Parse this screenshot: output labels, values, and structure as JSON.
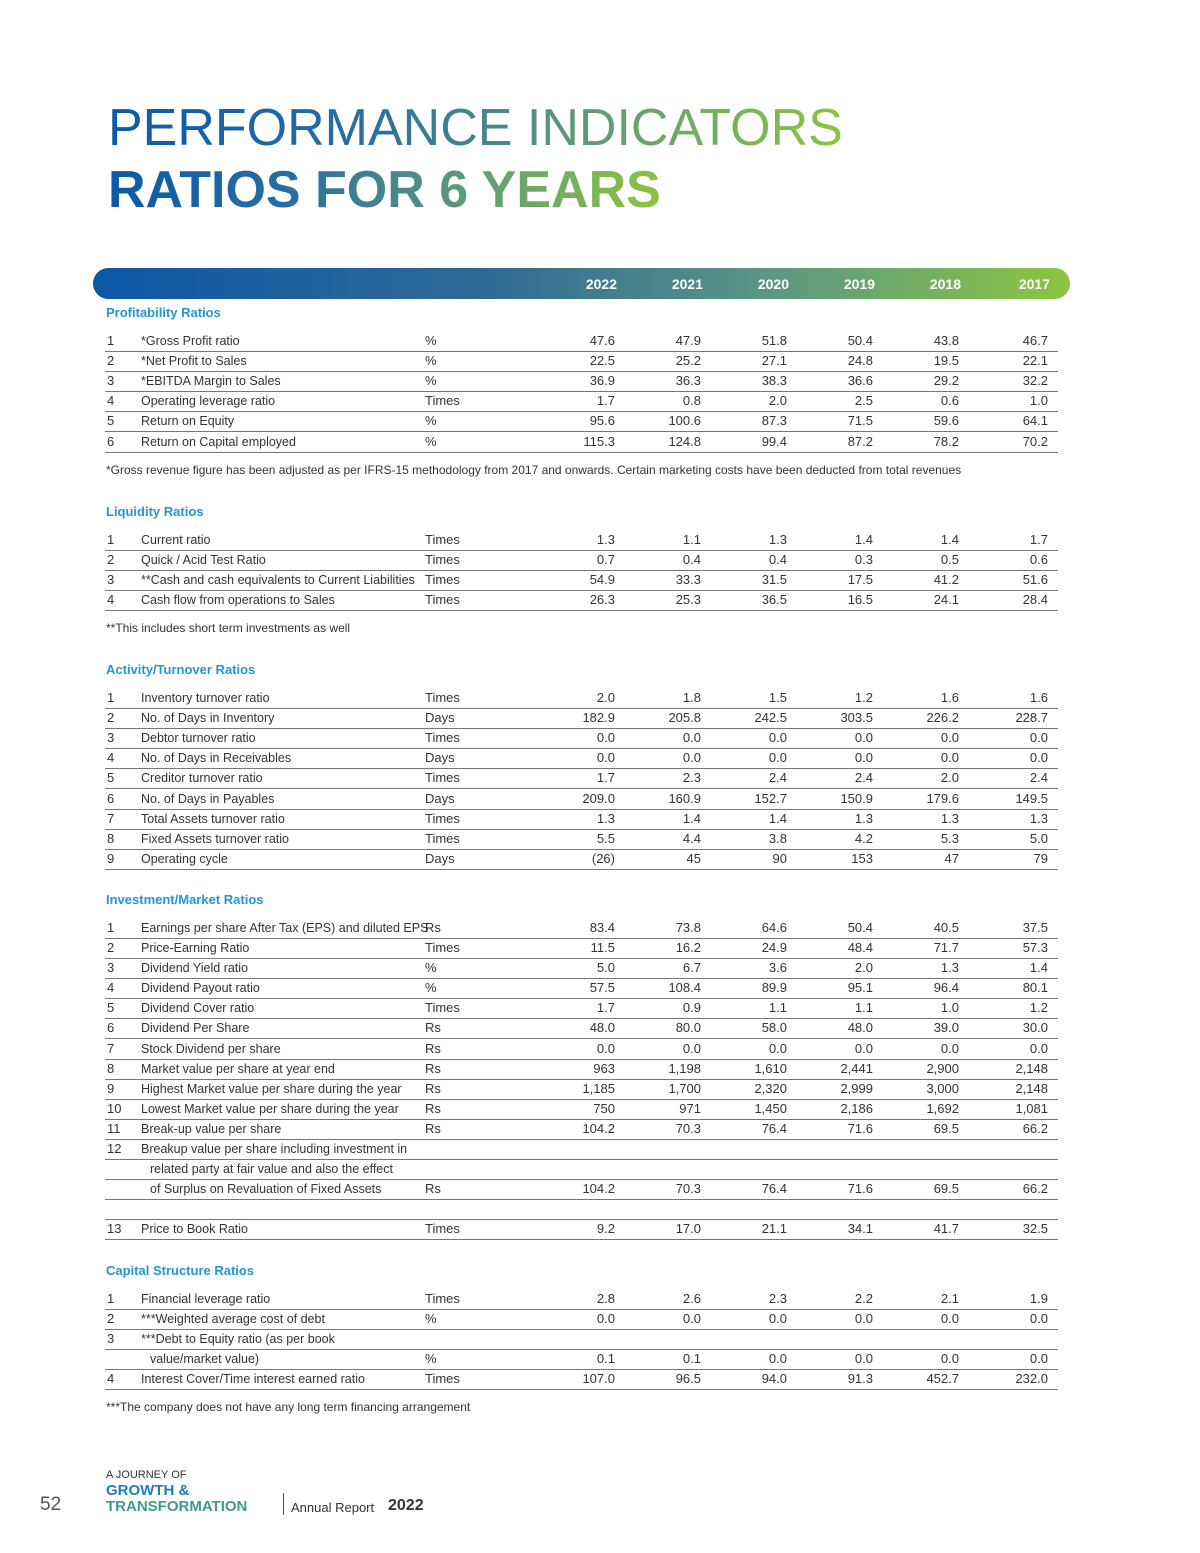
{
  "header": {
    "title_line1": "PERFORMANCE INDICATORS",
    "title_line2": "RATIOS FOR 6 YEARS"
  },
  "table": {
    "years": [
      "2022",
      "2021",
      "2020",
      "2019",
      "2018",
      "2017"
    ],
    "sections": [
      {
        "title": "Profitability Ratios",
        "rows": [
          {
            "no": "1",
            "label": "*Gross Profit ratio",
            "unit": "%",
            "values": [
              "47.6",
              "47.9",
              "51.8",
              "50.4",
              "43.8",
              "46.7"
            ]
          },
          {
            "no": "2",
            "label": "*Net Profit to Sales",
            "unit": "%",
            "values": [
              "22.5",
              "25.2",
              "27.1",
              "24.8",
              "19.5",
              "22.1"
            ]
          },
          {
            "no": "3",
            "label": "*EBITDA Margin to Sales",
            "unit": "%",
            "values": [
              "36.9",
              "36.3",
              "38.3",
              "36.6",
              "29.2",
              "32.2"
            ]
          },
          {
            "no": "4",
            "label": "Operating leverage ratio",
            "unit": "Times",
            "values": [
              "1.7",
              "0.8",
              "2.0",
              "2.5",
              "0.6",
              "1.0"
            ]
          },
          {
            "no": "5",
            "label": "Return on Equity",
            "unit": "%",
            "values": [
              "95.6",
              "100.6",
              "87.3",
              "71.5",
              "59.6",
              "64.1"
            ]
          },
          {
            "no": "6",
            "label": "Return on Capital employed",
            "unit": "%",
            "values": [
              "115.3",
              "124.8",
              "99.4",
              "87.2",
              "78.2",
              "70.2"
            ]
          }
        ],
        "note": "*Gross revenue figure has been adjusted as per IFRS-15 methodology from 2017 and onwards. Certain marketing costs have been deducted from total revenues"
      },
      {
        "title": "Liquidity Ratios",
        "rows": [
          {
            "no": "1",
            "label": "Current ratio",
            "unit": "Times",
            "values": [
              "1.3",
              "1.1",
              "1.3",
              "1.4",
              "1.4",
              "1.7"
            ]
          },
          {
            "no": "2",
            "label": "Quick / Acid Test Ratio",
            "unit": "Times",
            "values": [
              "0.7",
              "0.4",
              "0.4",
              "0.3",
              "0.5",
              "0.6"
            ]
          },
          {
            "no": "3",
            "label": "**Cash and cash equivalents to Current Liabilities",
            "unit": "Times",
            "values": [
              "54.9",
              "33.3",
              "31.5",
              "17.5",
              "41.2",
              "51.6"
            ]
          },
          {
            "no": "4",
            "label": "Cash flow from operations to Sales",
            "unit": "Times",
            "values": [
              "26.3",
              "25.3",
              "36.5",
              "16.5",
              "24.1",
              "28.4"
            ]
          }
        ],
        "note": "**This includes short term investments as well"
      },
      {
        "title": "Activity/Turnover Ratios",
        "rows": [
          {
            "no": "1",
            "label": "Inventory turnover ratio",
            "unit": "Times",
            "values": [
              "2.0",
              "1.8",
              "1.5",
              "1.2",
              "1.6",
              "1.6"
            ]
          },
          {
            "no": "2",
            "label": "No. of Days in Inventory",
            "unit": "Days",
            "values": [
              "182.9",
              "205.8",
              "242.5",
              "303.5",
              "226.2",
              "228.7"
            ]
          },
          {
            "no": "3",
            "label": "Debtor turnover ratio",
            "unit": "Times",
            "values": [
              "0.0",
              "0.0",
              "0.0",
              "0.0",
              "0.0",
              "0.0"
            ]
          },
          {
            "no": "4",
            "label": "No. of Days in Receivables",
            "unit": "Days",
            "values": [
              "0.0",
              "0.0",
              "0.0",
              "0.0",
              "0.0",
              "0.0"
            ]
          },
          {
            "no": "5",
            "label": "Creditor turnover ratio",
            "unit": "Times",
            "values": [
              "1.7",
              "2.3",
              "2.4",
              "2.4",
              "2.0",
              "2.4"
            ]
          },
          {
            "no": "6",
            "label": "No. of Days in Payables",
            "unit": "Days",
            "values": [
              "209.0",
              "160.9",
              "152.7",
              "150.9",
              "179.6",
              "149.5"
            ]
          },
          {
            "no": "7",
            "label": "Total Assets turnover ratio",
            "unit": "Times",
            "values": [
              "1.3",
              "1.4",
              "1.4",
              "1.3",
              "1.3",
              "1.3"
            ]
          },
          {
            "no": "8",
            "label": "Fixed Assets turnover ratio",
            "unit": "Times",
            "values": [
              "5.5",
              "4.4",
              "3.8",
              "4.2",
              "5.3",
              "5.0"
            ]
          },
          {
            "no": "9",
            "label": "Operating cycle",
            "unit": "Days",
            "values": [
              "(26)",
              "45",
              "90",
              "153",
              "47",
              "79"
            ]
          }
        ]
      },
      {
        "title": "Investment/Market Ratios",
        "rows": [
          {
            "no": "1",
            "label": "Earnings per share After Tax (EPS) and diluted EPS",
            "unit": "Rs",
            "values": [
              "83.4",
              "73.8",
              "64.6",
              "50.4",
              "40.5",
              "37.5"
            ]
          },
          {
            "no": "2",
            "label": "Price-Earning Ratio",
            "unit": "Times",
            "values": [
              "11.5",
              "16.2",
              "24.9",
              "48.4",
              "71.7",
              "57.3"
            ]
          },
          {
            "no": "3",
            "label": "Dividend Yield ratio",
            "unit": "%",
            "values": [
              "5.0",
              "6.7",
              "3.6",
              "2.0",
              "1.3",
              "1.4"
            ]
          },
          {
            "no": "4",
            "label": "Dividend Payout ratio",
            "unit": "%",
            "values": [
              "57.5",
              "108.4",
              "89.9",
              "95.1",
              "96.4",
              "80.1"
            ]
          },
          {
            "no": "5",
            "label": "Dividend Cover ratio",
            "unit": "Times",
            "values": [
              "1.7",
              "0.9",
              "1.1",
              "1.1",
              "1.0",
              "1.2"
            ]
          },
          {
            "no": "6",
            "label": "Dividend Per Share",
            "unit": "Rs",
            "values": [
              "48.0",
              "80.0",
              "58.0",
              "48.0",
              "39.0",
              "30.0"
            ]
          },
          {
            "no": "7",
            "label": "Stock Dividend per share",
            "unit": "Rs",
            "values": [
              "0.0",
              "0.0",
              "0.0",
              "0.0",
              "0.0",
              "0.0"
            ]
          },
          {
            "no": "8",
            "label": "Market value per share at year end",
            "unit": "Rs",
            "values": [
              "963",
              "1,198",
              "1,610",
              "2,441",
              "2,900",
              "2,148"
            ]
          },
          {
            "no": "9",
            "label": "Highest Market value per share during the year",
            "unit": "Rs",
            "values": [
              "1,185",
              "1,700",
              "2,320",
              "2,999",
              "3,000",
              "2,148"
            ]
          },
          {
            "no": "10",
            "label": "Lowest Market value per share during the year",
            "unit": "Rs",
            "values": [
              "750",
              "971",
              "1,450",
              "2,186",
              "1,692",
              "1,081"
            ]
          },
          {
            "no": "11",
            "label": "Break-up value per share",
            "unit": "Rs",
            "values": [
              "104.2",
              "70.3",
              "76.4",
              "71.6",
              "69.5",
              "66.2"
            ]
          },
          {
            "no": "12",
            "label_lines": [
              "Breakup value per share including investment in",
              "related party at fair value and also the effect",
              "of Surplus on Revaluation of Fixed Assets"
            ],
            "unit": "Rs",
            "values": [
              "104.2",
              "70.3",
              "76.4",
              "71.6",
              "69.5",
              "66.2"
            ]
          },
          {
            "no": "13",
            "label": "Price to Book Ratio",
            "unit": "Times",
            "values": [
              "9.2",
              "17.0",
              "21.1",
              "34.1",
              "41.7",
              "32.5"
            ]
          }
        ]
      },
      {
        "title": "Capital Structure Ratios",
        "rows": [
          {
            "no": "1",
            "label": "Financial leverage ratio",
            "unit": "Times",
            "values": [
              "2.8",
              "2.6",
              "2.3",
              "2.2",
              "2.1",
              "1.9"
            ]
          },
          {
            "no": "2",
            "label": "***Weighted average cost of debt",
            "unit": "%",
            "values": [
              "0.0",
              "0.0",
              "0.0",
              "0.0",
              "0.0",
              "0.0"
            ]
          },
          {
            "no": "3",
            "label_lines": [
              "***Debt to Equity ratio (as per book",
              "value/market value)"
            ],
            "unit": "%",
            "values": [
              "0.1",
              "0.1",
              "0.0",
              "0.0",
              "0.0",
              "0.0"
            ]
          },
          {
            "no": "4",
            "label": "Interest Cover/Time interest earned ratio",
            "unit": "Times",
            "values": [
              "107.0",
              "96.5",
              "94.0",
              "91.3",
              "452.7",
              "232.0"
            ]
          }
        ],
        "note": "***The company does not have any long term financing arrangement"
      }
    ]
  },
  "footer": {
    "tagline": "A JOURNEY OF",
    "brand_line1": "GROWTH &",
    "brand_line2": "TRANSFORMATION",
    "report": "Annual Report",
    "year": "2022",
    "page_number": "52"
  }
}
